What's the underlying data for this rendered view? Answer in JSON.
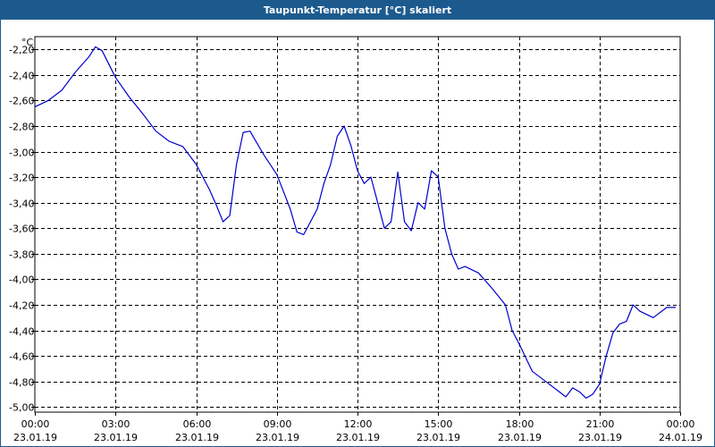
{
  "window": {
    "title": "Taupunkt-Temperatur [°C] skaliert"
  },
  "chart_data": {
    "type": "line",
    "title": "Taupunkt-Temperatur [°C] skaliert",
    "ylabel": "°C",
    "xlabel": "",
    "ylim": [
      -5.04,
      -2.1
    ],
    "y_ticks": [
      "-2,20",
      "-2,40",
      "-2,60",
      "-2,80",
      "-3,00",
      "-3,20",
      "-3,40",
      "-3,60",
      "-3,80",
      "-4,00",
      "-4,20",
      "-4,40",
      "-4,60",
      "-4,80",
      "-5,00"
    ],
    "x_ticks": [
      {
        "time": "00:00",
        "date": "23.01.19"
      },
      {
        "time": "03:00",
        "date": "23.01.19"
      },
      {
        "time": "06:00",
        "date": "23.01.19"
      },
      {
        "time": "09:00",
        "date": "23.01.19"
      },
      {
        "time": "12:00",
        "date": "23.01.19"
      },
      {
        "time": "15:00",
        "date": "23.01.19"
      },
      {
        "time": "18:00",
        "date": "23.01.19"
      },
      {
        "time": "21:00",
        "date": "23.01.19"
      },
      {
        "time": "00:00",
        "date": "24.01.19"
      }
    ],
    "grid": true,
    "line_color": "#0000cc",
    "series": [
      {
        "x": [
          "00:00",
          "00:30",
          "01:00",
          "01:30",
          "02:00",
          "02:15",
          "02:30",
          "03:00",
          "03:30",
          "04:00",
          "04:30",
          "05:00",
          "05:30",
          "06:00",
          "06:30",
          "06:45",
          "07:00",
          "07:15",
          "07:30",
          "07:45",
          "08:00",
          "08:30",
          "09:00",
          "09:30",
          "09:45",
          "10:00",
          "10:30",
          "10:45",
          "11:00",
          "11:15",
          "11:30",
          "11:45",
          "12:00",
          "12:15",
          "12:30",
          "12:45",
          "13:00",
          "13:15",
          "13:30",
          "13:45",
          "14:00",
          "14:15",
          "14:30",
          "14:45",
          "15:00",
          "15:15",
          "15:30",
          "15:45",
          "16:00",
          "16:30",
          "17:00",
          "17:30",
          "17:45",
          "18:00",
          "18:30",
          "19:00",
          "19:30",
          "19:45",
          "20:00",
          "20:15",
          "20:30",
          "20:45",
          "21:00",
          "21:15",
          "21:30",
          "21:45",
          "22:00",
          "22:15",
          "22:30",
          "23:00",
          "23:30",
          "23:50"
        ],
        "y": [
          -2.65,
          -2.6,
          -2.52,
          -2.38,
          -2.26,
          -2.18,
          -2.21,
          -2.42,
          -2.57,
          -2.7,
          -2.84,
          -2.92,
          -2.96,
          -3.1,
          -3.3,
          -3.42,
          -3.55,
          -3.5,
          -3.1,
          -2.85,
          -2.84,
          -3.02,
          -3.18,
          -3.45,
          -3.63,
          -3.65,
          -3.45,
          -3.25,
          -3.1,
          -2.88,
          -2.8,
          -2.95,
          -3.15,
          -3.25,
          -3.2,
          -3.4,
          -3.6,
          -3.55,
          -3.16,
          -3.55,
          -3.62,
          -3.4,
          -3.45,
          -3.15,
          -3.2,
          -3.6,
          -3.8,
          -3.92,
          -3.9,
          -3.95,
          -4.07,
          -4.2,
          -4.4,
          -4.5,
          -4.72,
          -4.8,
          -4.88,
          -4.92,
          -4.85,
          -4.88,
          -4.93,
          -4.9,
          -4.82,
          -4.6,
          -4.42,
          -4.35,
          -4.33,
          -4.2,
          -4.25,
          -4.3,
          -4.22,
          -4.22
        ]
      }
    ]
  }
}
